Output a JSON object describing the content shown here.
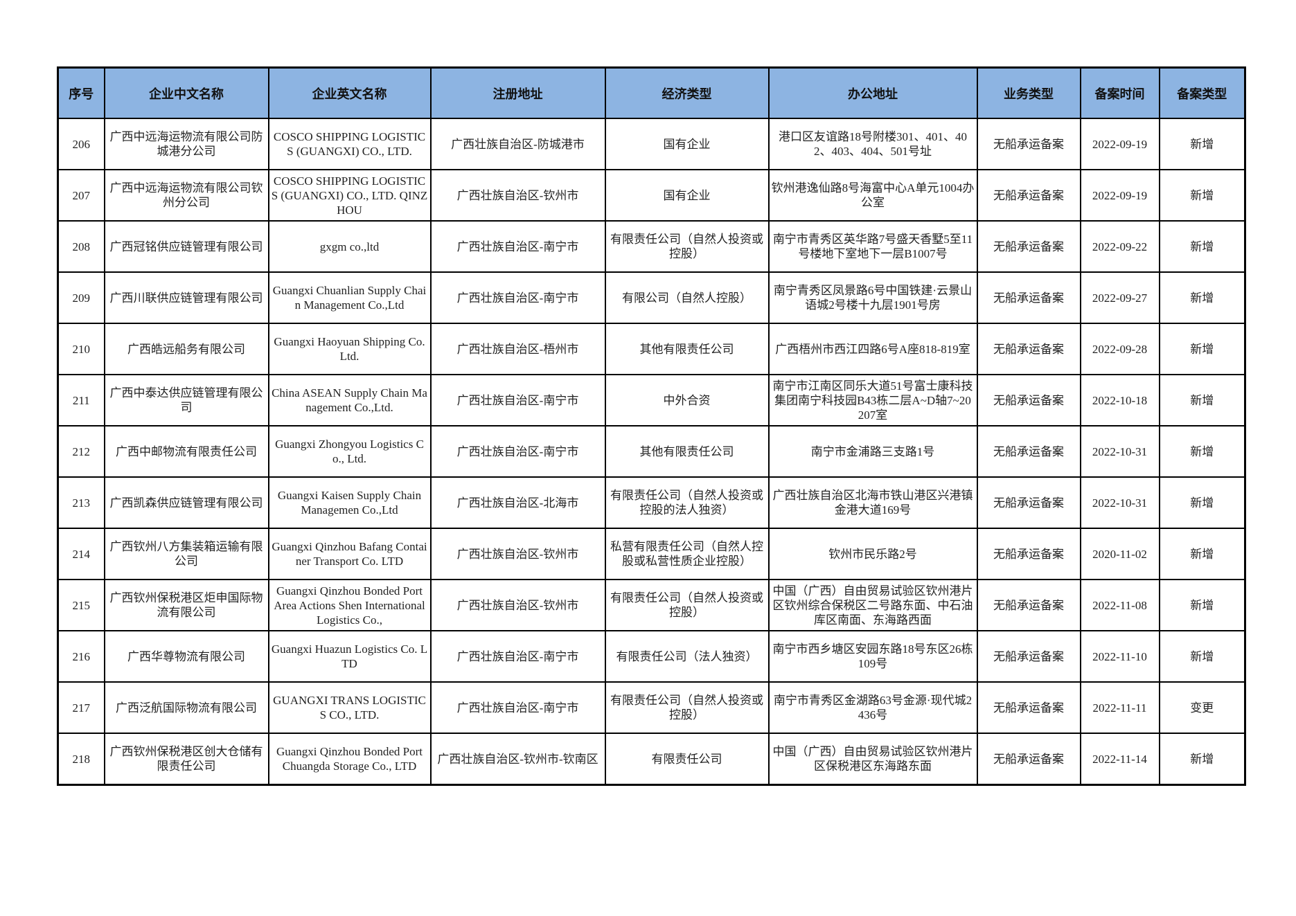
{
  "table": {
    "headers": [
      "序号",
      "企业中文名称",
      "企业英文名称",
      "注册地址",
      "经济类型",
      "办公地址",
      "业务类型",
      "备案时间",
      "备案类型"
    ],
    "header_color": "#8DB4E2",
    "rows": [
      [
        "206",
        "广西中远海运物流有限公司防城港分公司",
        "COSCO SHIPPING LOGISTICS (GUANGXI) CO., LTD.",
        "广西壮族自治区-防城港市",
        "国有企业",
        "港口区友谊路18号附楼301、401、402、403、404、501号址",
        "无船承运备案",
        "2022-09-19",
        "新增"
      ],
      [
        "207",
        "广西中远海运物流有限公司钦州分公司",
        "COSCO SHIPPING LOGISTICS (GUANGXI) CO., LTD. QINZHOU",
        "广西壮族自治区-钦州市",
        "国有企业",
        "钦州港逸仙路8号海富中心A单元1004办公室",
        "无船承运备案",
        "2022-09-19",
        "新增"
      ],
      [
        "208",
        "广西冠铭供应链管理有限公司",
        "gxgm co.,ltd",
        "广西壮族自治区-南宁市",
        "有限责任公司（自然人投资或控股）",
        "南宁市青秀区英华路7号盛天香墅5至11号楼地下室地下一层B1007号",
        "无船承运备案",
        "2022-09-22",
        "新增"
      ],
      [
        "209",
        "广西川联供应链管理有限公司",
        "Guangxi Chuanlian Supply Chain Management Co.,Ltd",
        "广西壮族自治区-南宁市",
        "有限公司（自然人控股）",
        "南宁青秀区凤景路6号中国铁建·云景山语城2号楼十九层1901号房",
        "无船承运备案",
        "2022-09-27",
        "新增"
      ],
      [
        "210",
        "广西皓远船务有限公司",
        "Guangxi Haoyuan Shipping Co.Ltd.",
        "广西壮族自治区-梧州市",
        "其他有限责任公司",
        "广西梧州市西江四路6号A座818-819室",
        "无船承运备案",
        "2022-09-28",
        "新增"
      ],
      [
        "211",
        "广西中泰达供应链管理有限公司",
        "China ASEAN Supply Chain Management Co.,Ltd.",
        "广西壮族自治区-南宁市",
        "中外合资",
        "南宁市江南区同乐大道51号富士康科技集团南宁科技园B43栋二层A~D轴7~20 207室",
        "无船承运备案",
        "2022-10-18",
        "新增"
      ],
      [
        "212",
        "广西中邮物流有限责任公司",
        "Guangxi Zhongyou Logistics Co., Ltd.",
        "广西壮族自治区-南宁市",
        "其他有限责任公司",
        "南宁市金浦路三支路1号",
        "无船承运备案",
        "2022-10-31",
        "新增"
      ],
      [
        "213",
        "广西凯森供应链管理有限公司",
        "Guangxi Kaisen Supply Chain Managemen Co.,Ltd",
        "广西壮族自治区-北海市",
        "有限责任公司（自然人投资或控股的法人独资）",
        "广西壮族自治区北海市铁山港区兴港镇金港大道169号",
        "无船承运备案",
        "2022-10-31",
        "新增"
      ],
      [
        "214",
        "广西钦州八方集装箱运输有限公司",
        "Guangxi Qinzhou Bafang Container Transport Co. LTD",
        "广西壮族自治区-钦州市",
        "私营有限责任公司（自然人控股或私营性质企业控股）",
        "钦州市民乐路2号",
        "无船承运备案",
        "2020-11-02",
        "新增"
      ],
      [
        "215",
        "广西钦州保税港区炬申国际物流有限公司",
        "Guangxi Qinzhou Bonded Port Area Actions Shen International Logistics Co.,",
        "广西壮族自治区-钦州市",
        "有限责任公司（自然人投资或控股）",
        "中国（广西）自由贸易试验区钦州港片区钦州综合保税区二号路东面、中石油库区南面、东海路西面",
        "无船承运备案",
        "2022-11-08",
        "新增"
      ],
      [
        "216",
        "广西华尊物流有限公司",
        "Guangxi Huazun Logistics Co. LTD",
        "广西壮族自治区-南宁市",
        "有限责任公司（法人独资）",
        "南宁市西乡塘区安园东路18号东区26栋109号",
        "无船承运备案",
        "2022-11-10",
        "新增"
      ],
      [
        "217",
        "广西泛航国际物流有限公司",
        "GUANGXI TRANS LOGISTICS CO., LTD.",
        "广西壮族自治区-南宁市",
        "有限责任公司（自然人投资或控股）",
        "南宁市青秀区金湖路63号金源·现代城2436号",
        "无船承运备案",
        "2022-11-11",
        "变更"
      ],
      [
        "218",
        "广西钦州保税港区创大仓储有限责任公司",
        "Guangxi Qinzhou Bonded Port Chuangda Storage Co., LTD",
        "广西壮族自治区-钦州市-钦南区",
        "有限责任公司",
        "中国（广西）自由贸易试验区钦州港片区保税港区东海路东面",
        "无船承运备案",
        "2022-11-14",
        "新增"
      ]
    ]
  }
}
